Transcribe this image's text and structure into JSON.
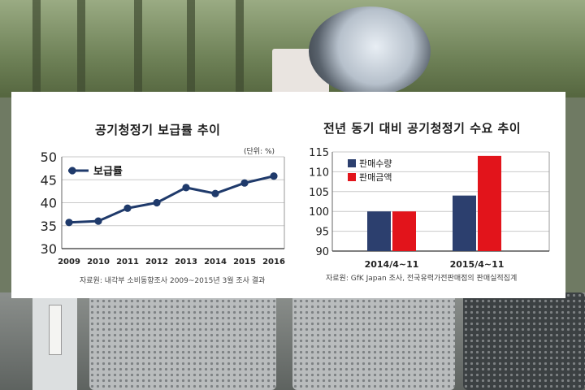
{
  "chart_data": [
    {
      "type": "line",
      "title": "공기청정기 보급률 추이",
      "unit": "(단위: %)",
      "x": [
        "2009",
        "2010",
        "2011",
        "2012",
        "2013",
        "2014",
        "2015",
        "2016"
      ],
      "series": [
        {
          "name": "보급률",
          "values": [
            35.7,
            36.0,
            38.8,
            40.0,
            43.3,
            42.0,
            44.3,
            45.8
          ],
          "color": "#1f3a6b"
        }
      ],
      "yticks": [
        30,
        35,
        40,
        45,
        50
      ],
      "ylim": [
        30,
        50
      ],
      "grid": true,
      "legend": "top-left",
      "source": "자료원: 내각부 소비동향조사 2009~2015년 3월 조사 결과"
    },
    {
      "type": "bar",
      "title": "전년 동기 대비 공기청정기 수요 추이",
      "categories": [
        "2014/4~11",
        "2015/4~11"
      ],
      "series": [
        {
          "name": "판매수량",
          "values": [
            100,
            104
          ],
          "color": "#2c3f6e"
        },
        {
          "name": "판매금액",
          "values": [
            100,
            114
          ],
          "color": "#e2141b"
        }
      ],
      "yticks": [
        90,
        95,
        100,
        105,
        110,
        115
      ],
      "ylim": [
        90,
        115
      ],
      "grid": true,
      "legend": "top-left",
      "source": "자료원: GfK Japan 조사, 전국유력가전판매점의 판매실적집계"
    }
  ]
}
